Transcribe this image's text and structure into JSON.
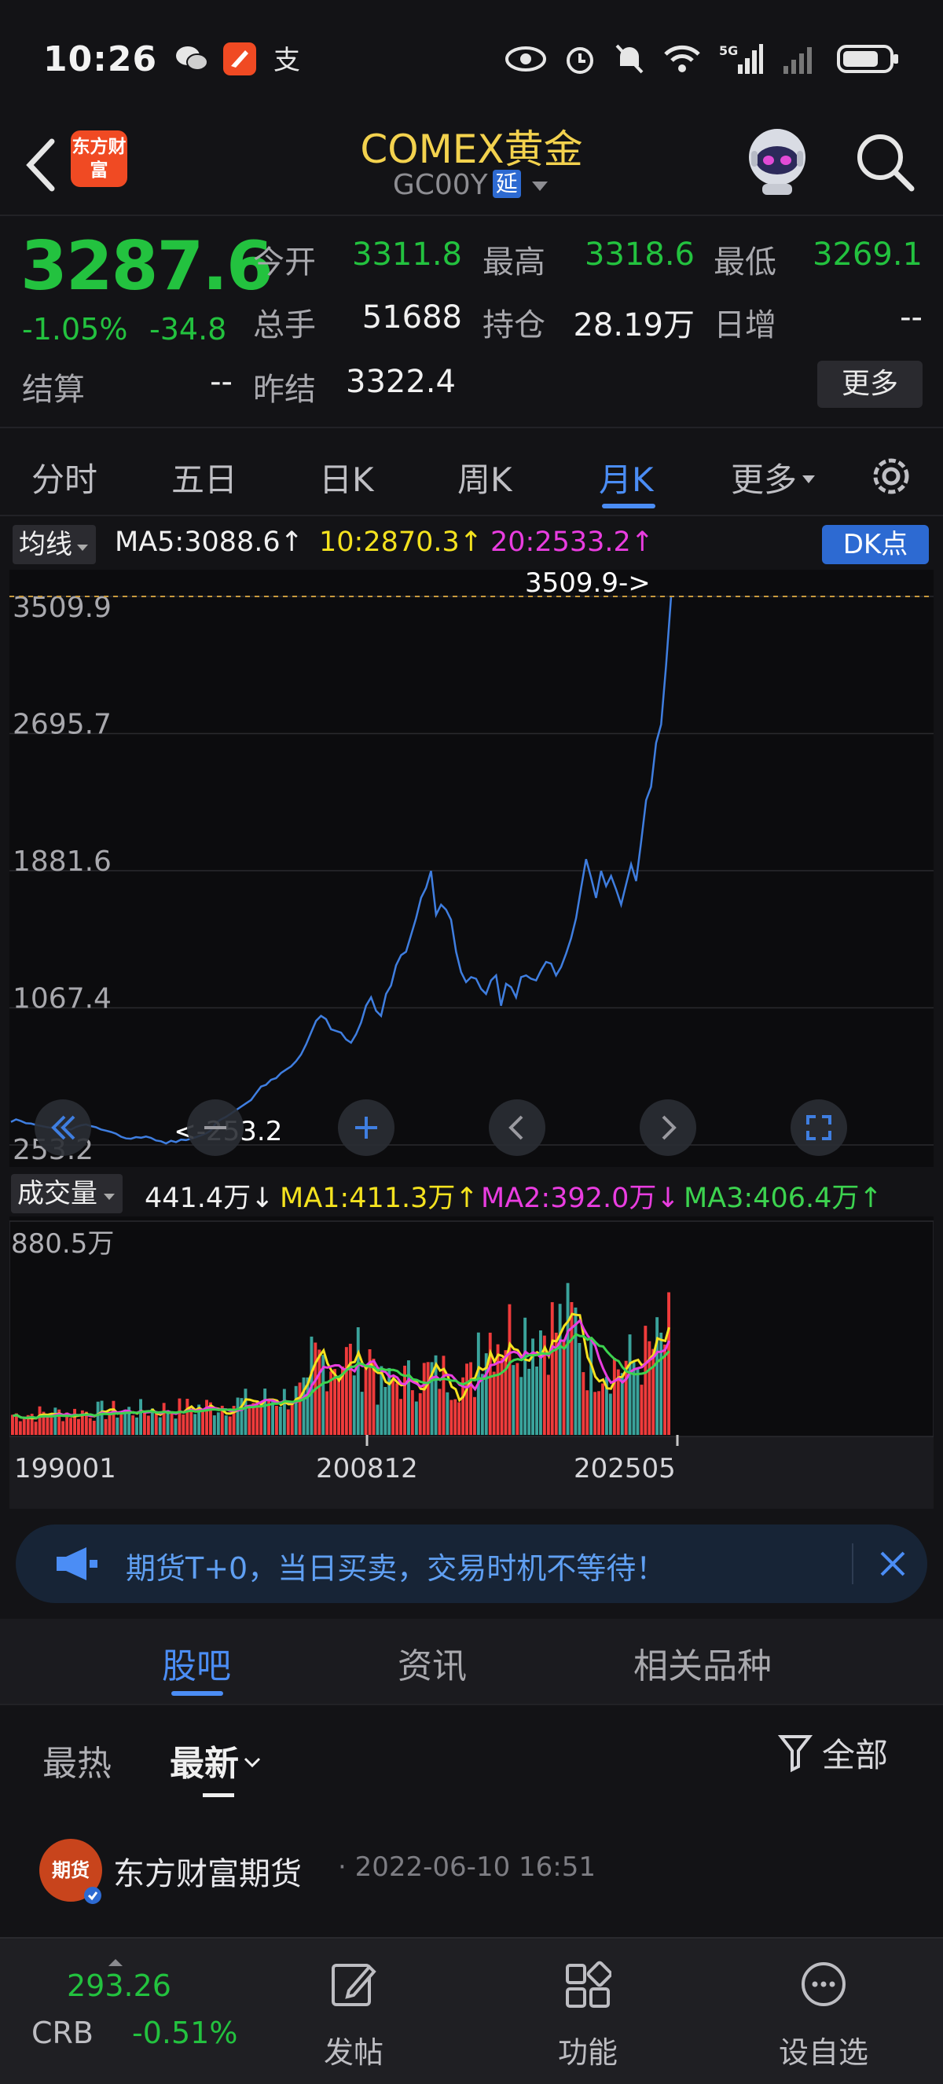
{
  "status_bar": {
    "time": "10:26",
    "network": "5G"
  },
  "header": {
    "brand_logo_text": "东方财富",
    "title": "COMEX黄金",
    "code": "GC00Y",
    "delay_badge": "延"
  },
  "quote": {
    "price": "3287.6",
    "change_pct": "-1.05%",
    "change": "-34.8",
    "fields": {
      "open_label": "今开",
      "open": "3311.8",
      "high_label": "最高",
      "high": "3318.6",
      "low_label": "最低",
      "low": "3269.1",
      "volume_label": "总手",
      "volume": "51688",
      "position_label": "持仓",
      "position": "28.19万",
      "daily_inc_label": "日增",
      "daily_inc": "--",
      "settle_label": "结算",
      "settle": "--",
      "prev_settle_label": "昨结",
      "prev_settle": "3322.4"
    },
    "more_label": "更多"
  },
  "period_tabs": [
    "分时",
    "五日",
    "日K",
    "周K",
    "月K",
    "更多"
  ],
  "active_period": "月K",
  "ma": {
    "dropdown_label": "均线",
    "ma5": "MA5:3088.6↑",
    "ma10": "10:2870.3↑",
    "ma20": "20:2533.2↑",
    "dk_label": "DK点"
  },
  "colors": {
    "up": "#ef3b3b",
    "down": "#23c23f",
    "accent": "#4b8df5",
    "title": "#f3d24e",
    "ma1": "#f4e21f",
    "ma2": "#e93de0",
    "ma3": "#3cd34f"
  },
  "chart_data": [
    {
      "type": "line",
      "y_ticks": [
        "3509.9",
        "2695.7",
        "1881.6",
        "1067.4",
        "253.2"
      ],
      "ylim": [
        253.2,
        3509.9
      ],
      "max_label": "3509.9->",
      "min_label": "<-253.2",
      "series": [
        {
          "values": [
            390,
            405,
            395,
            382,
            380,
            372,
            366,
            360,
            355,
            375,
            362,
            350,
            345,
            360,
            370,
            375,
            365,
            358,
            345,
            338,
            330,
            320,
            302,
            292,
            290,
            300,
            296,
            303,
            295,
            280,
            275,
            262,
            278,
            270,
            285,
            282,
            290,
            300,
            310,
            322,
            340,
            385,
            405,
            420,
            440,
            460,
            480,
            500,
            520,
            560,
            600,
            610,
            640,
            650,
            680,
            700,
            720,
            750,
            790,
            850,
            920,
            990,
            1020,
            1000,
            940,
            930,
            920,
            880,
            860,
            910,
            980,
            1080,
            1130,
            1050,
            1020,
            1150,
            1200,
            1320,
            1380,
            1400,
            1500,
            1600,
            1720,
            1780,
            1880,
            1620,
            1680,
            1650,
            1590,
            1400,
            1280,
            1220,
            1250,
            1240,
            1180,
            1150,
            1230,
            1260,
            1080,
            1210,
            1190,
            1130,
            1250,
            1260,
            1240,
            1230,
            1290,
            1340,
            1330,
            1260,
            1310,
            1390,
            1480,
            1600,
            1780,
            1950,
            1840,
            1720,
            1880,
            1790,
            1850,
            1770,
            1680,
            1800,
            1920,
            1820,
            2050,
            2300,
            2380,
            2640,
            2750,
            3100,
            3510
          ]
        }
      ]
    },
    {
      "type": "bar",
      "y_ticks": [
        "880.5万"
      ],
      "x_ticks": [
        "199001",
        "200812",
        "202505"
      ],
      "series": [
        {
          "name": "MA1:411.3万↑",
          "values": []
        },
        {
          "name": "MA2:392.0万↓",
          "values": []
        },
        {
          "name": "MA3:406.4万↑",
          "values": []
        }
      ]
    }
  ],
  "volume_panel": {
    "dropdown_label": "成交量",
    "current": "441.4万↓",
    "ma1": "MA1:411.3万↑",
    "ma2": "MA2:392.0万↓",
    "ma3": "MA3:406.4万↑"
  },
  "ad_banner": {
    "text": "期货T+0，当日买卖，交易时机不等待！"
  },
  "section_tabs": [
    "股吧",
    "资讯",
    "相关品种"
  ],
  "filters": {
    "hot": "最热",
    "latest": "最新",
    "all": "全部"
  },
  "post": {
    "avatar_text": "期货",
    "author": "东方财富期货",
    "time": "· 2022-06-10 16:51"
  },
  "bottom_nav": {
    "crb_value": "293.26",
    "crb_name": "CRB",
    "crb_pct": "-0.51%",
    "post": "发帖",
    "features": "功能",
    "watchlist": "设自选"
  }
}
